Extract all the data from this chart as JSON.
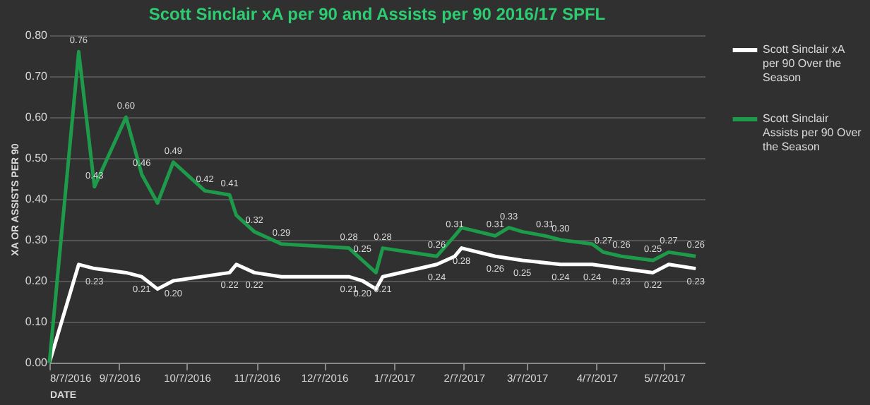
{
  "chart_data": {
    "type": "line",
    "title": "Scott Sinclair xA per 90 and Assists per 90 2016/17 SPFL",
    "xlabel": "DATE",
    "ylabel": "XA OR ASSISTS PER 90",
    "xlim": [
      "2016-08-07",
      "2017-05-25"
    ],
    "xticks": [
      {
        "value": "2016-08-07",
        "label": "8/7/2016"
      },
      {
        "value": "2016-09-07",
        "label": "9/7/2016"
      },
      {
        "value": "2016-10-07",
        "label": "10/7/2016"
      },
      {
        "value": "2016-11-07",
        "label": "11/7/2016"
      },
      {
        "value": "2016-12-07",
        "label": "12/7/2016"
      },
      {
        "value": "2017-01-07",
        "label": "1/7/2017"
      },
      {
        "value": "2017-02-07",
        "label": "2/7/2017"
      },
      {
        "value": "2017-03-07",
        "label": "3/7/2017"
      },
      {
        "value": "2017-04-07",
        "label": "4/7/2017"
      },
      {
        "value": "2017-05-07",
        "label": "5/7/2017"
      }
    ],
    "ylim": [
      0,
      0.8
    ],
    "yticks": [
      {
        "value": 0,
        "label": "0.00"
      },
      {
        "value": 0.1,
        "label": "0.10"
      },
      {
        "value": 0.2,
        "label": "0.20"
      },
      {
        "value": 0.3,
        "label": "0.30"
      },
      {
        "value": 0.4,
        "label": "0.40"
      },
      {
        "value": 0.5,
        "label": "0.50"
      },
      {
        "value": 0.6,
        "label": "0.60"
      },
      {
        "value": 0.7,
        "label": "0.70"
      },
      {
        "value": 0.8,
        "label": "0.80"
      }
    ],
    "grid": "y",
    "legend": "right",
    "marker": "none",
    "line_style": "solid",
    "series": [
      {
        "name": "Scott Sinclair xA per 90 Over the Season",
        "color": "#ffffff",
        "x": [
          "2016-08-07",
          "2016-08-20",
          "2016-08-27",
          "2016-09-10",
          "2016-09-17",
          "2016-09-24",
          "2016-10-01",
          "2016-10-26",
          "2016-10-29",
          "2016-11-06",
          "2016-11-18",
          "2016-12-18",
          "2016-12-24",
          "2016-12-30",
          "2017-01-02",
          "2017-01-26",
          "2017-02-03",
          "2017-02-06",
          "2017-02-21",
          "2017-03-05",
          "2017-03-22",
          "2017-04-05",
          "2017-04-18",
          "2017-05-02",
          "2017-05-09",
          "2017-05-21"
        ],
        "values": [
          0,
          0.24,
          0.23,
          0.22,
          0.21,
          0.18,
          0.2,
          0.22,
          0.24,
          0.22,
          0.21,
          0.21,
          0.2,
          0.18,
          0.21,
          0.24,
          0.26,
          0.28,
          0.26,
          0.25,
          0.24,
          0.24,
          0.23,
          0.22,
          0.24,
          0.23
        ],
        "value_labels": [
          null,
          null,
          "0.23",
          null,
          "0.21",
          null,
          "0.20",
          "0.22",
          null,
          "0.22",
          null,
          "0.21",
          "0.20",
          null,
          "0.21",
          "0.24",
          null,
          "0.28",
          "0.26",
          "0.25",
          "0.24",
          "0.24",
          "0.23",
          "0.22",
          null,
          "0.23"
        ]
      },
      {
        "name": "Scott Sinclair Assists per 90 Over the Season",
        "color": "#1e9b4a",
        "x": [
          "2016-08-07",
          "2016-08-20",
          "2016-08-27",
          "2016-09-10",
          "2016-09-17",
          "2016-09-24",
          "2016-10-01",
          "2016-10-15",
          "2016-10-26",
          "2016-10-29",
          "2016-11-06",
          "2016-11-18",
          "2016-12-18",
          "2016-12-24",
          "2016-12-30",
          "2017-01-02",
          "2017-01-26",
          "2017-02-03",
          "2017-02-06",
          "2017-02-21",
          "2017-02-27",
          "2017-03-05",
          "2017-03-15",
          "2017-03-22",
          "2017-04-05",
          "2017-04-10",
          "2017-04-18",
          "2017-05-02",
          "2017-05-09",
          "2017-05-21"
        ],
        "values": [
          0,
          0.76,
          0.43,
          0.6,
          0.46,
          0.39,
          0.49,
          0.42,
          0.41,
          0.36,
          0.32,
          0.29,
          0.28,
          0.25,
          0.22,
          0.28,
          0.26,
          0.31,
          0.33,
          0.31,
          0.33,
          0.32,
          0.31,
          0.3,
          0.29,
          0.27,
          0.26,
          0.25,
          0.27,
          0.26
        ],
        "value_labels": [
          null,
          "0.76",
          "0.43",
          "0.60",
          "0.46",
          null,
          "0.49",
          "0.42",
          "0.41",
          null,
          "0.32",
          "0.29",
          "0.28",
          "0.25",
          null,
          "0.28",
          "0.26",
          "0.31",
          null,
          "0.31",
          "0.33",
          null,
          "0.31",
          "0.30",
          null,
          "0.27",
          "0.26",
          "0.25",
          "0.27",
          "0.26"
        ]
      }
    ]
  }
}
